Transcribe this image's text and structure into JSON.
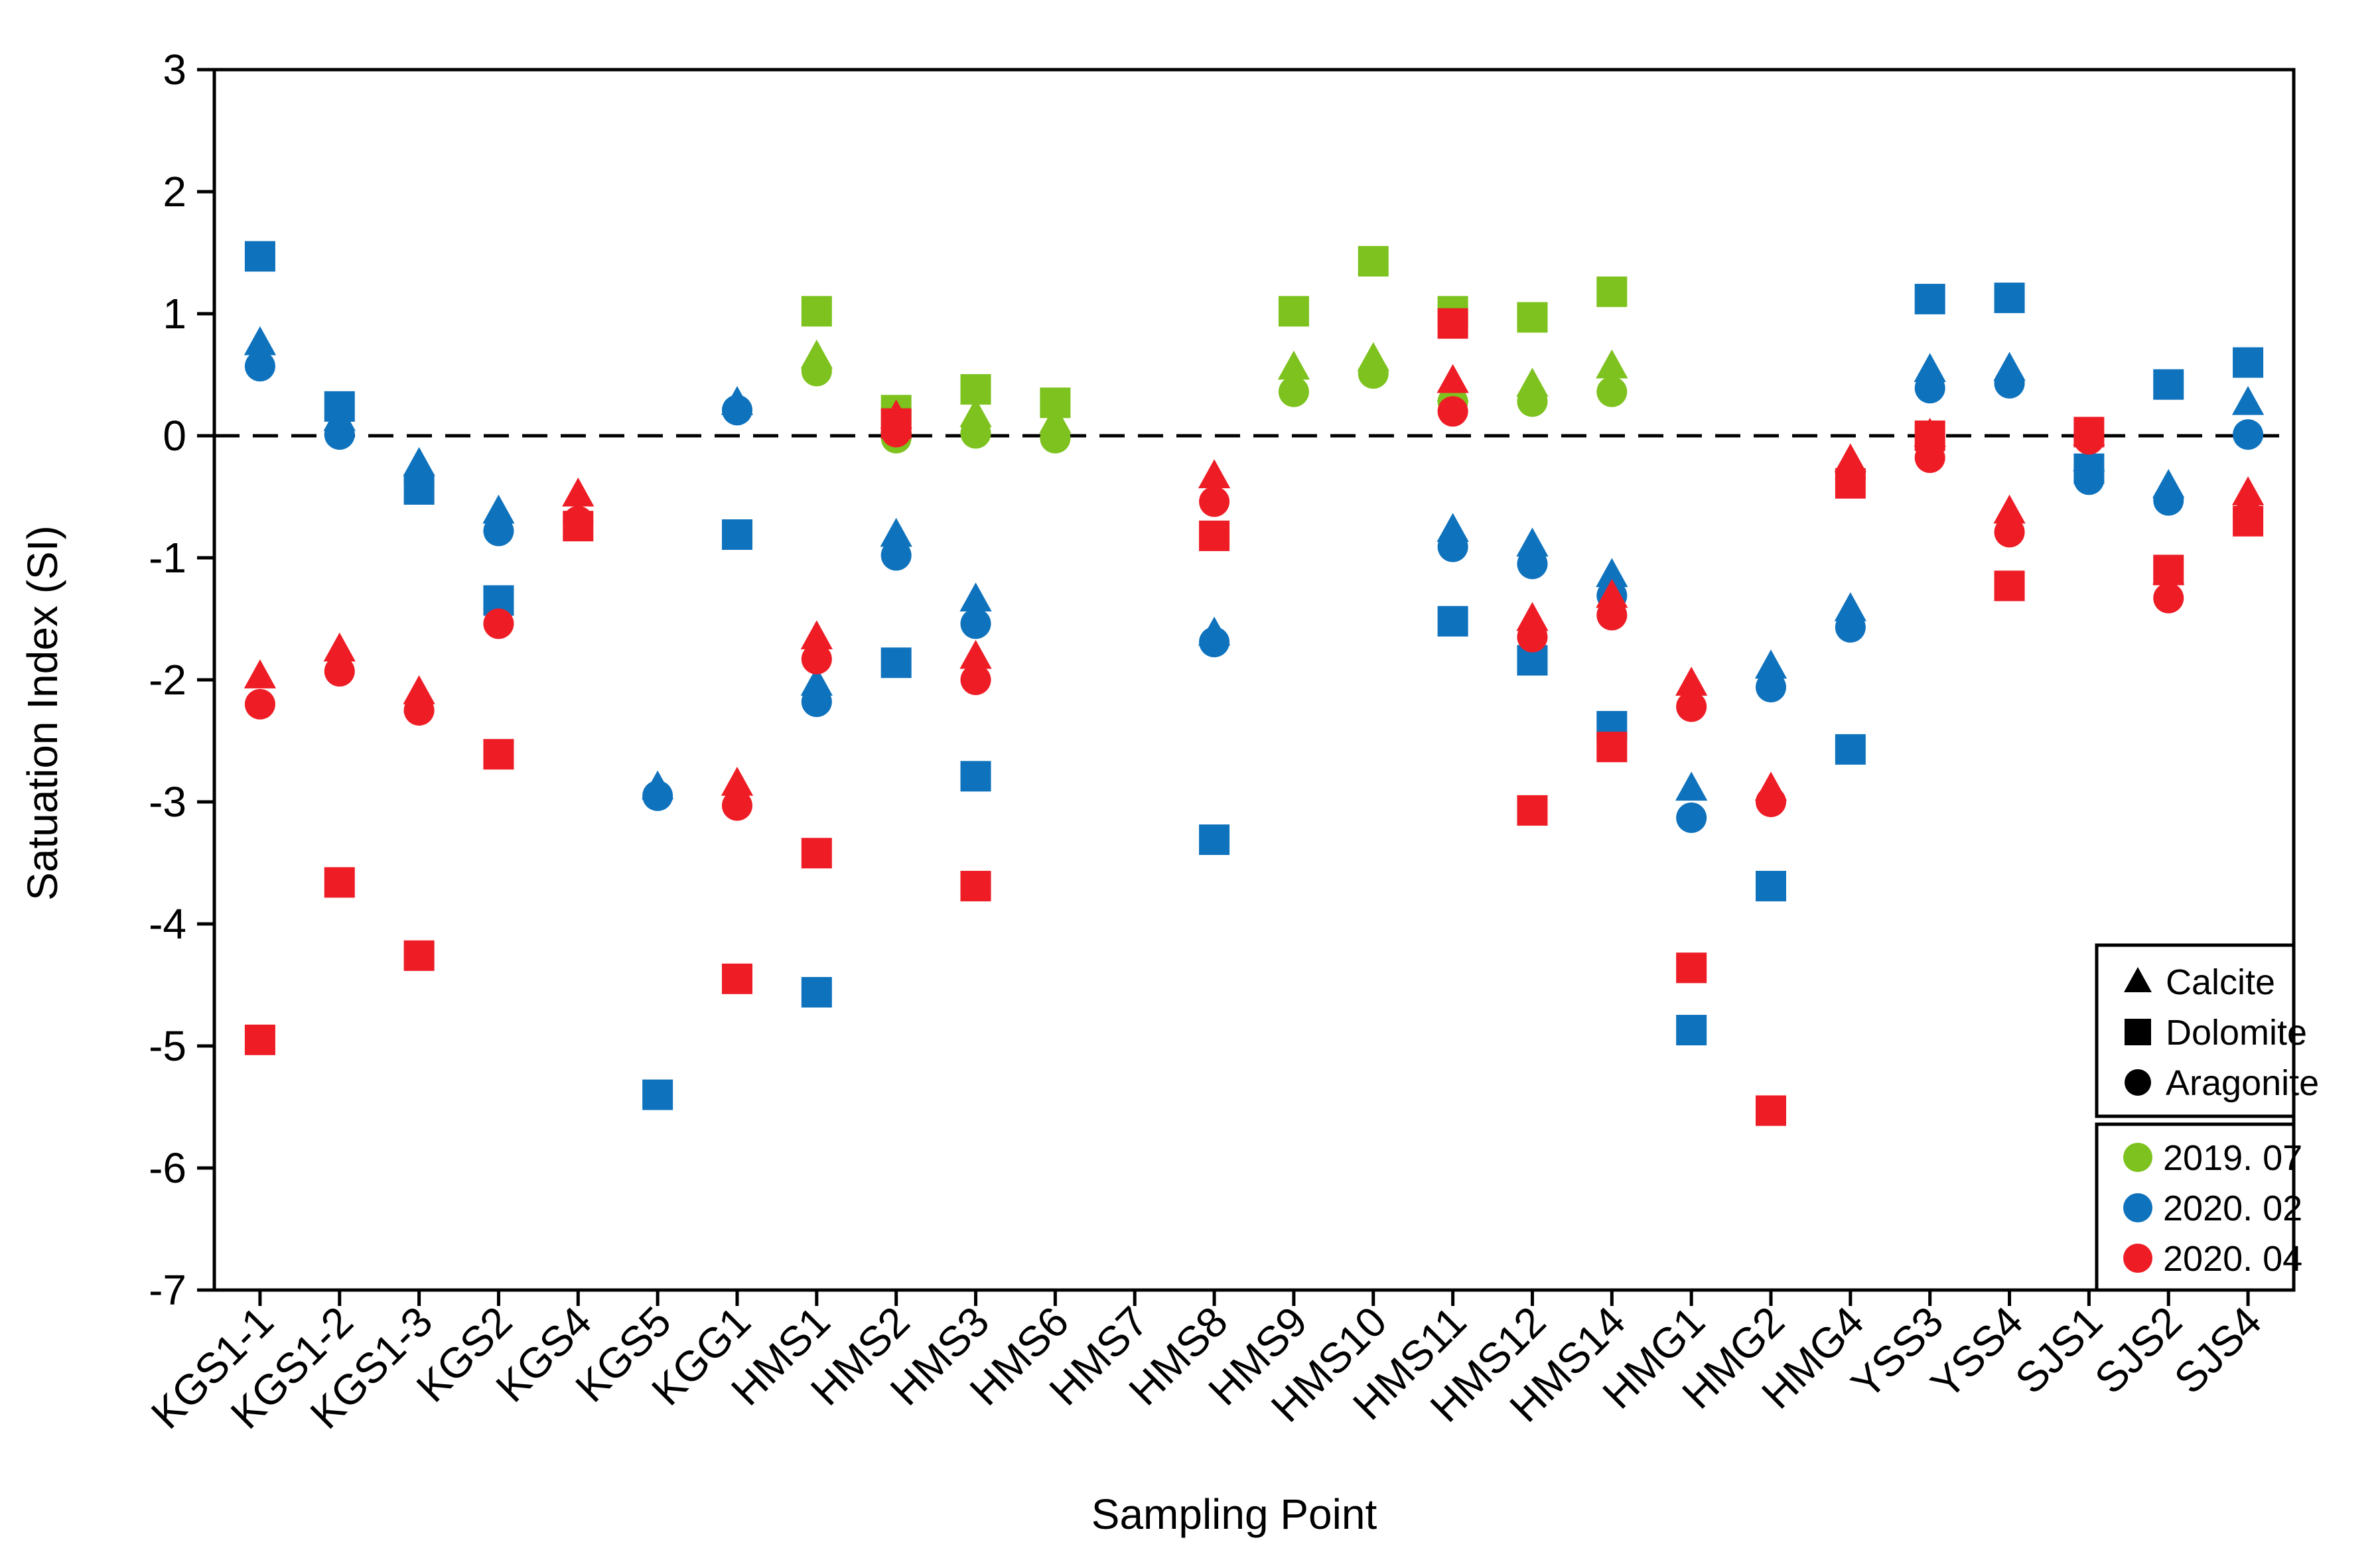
{
  "chart_data": {
    "type": "scatter",
    "title": "",
    "xlabel": "Sampling Point",
    "ylabel": "Satuation Index (SI)",
    "ylim": [
      -7,
      3
    ],
    "yticks": [
      3,
      2,
      1,
      0,
      -1,
      -2,
      -3,
      -4,
      -5,
      -6,
      -7
    ],
    "reference_line": {
      "y": 0,
      "style": "dashed"
    },
    "categories": [
      "KGS1-1",
      "KGS1-2",
      "KGS1-3",
      "KGS2",
      "KGS4",
      "KGS5",
      "KGG1",
      "HMS1",
      "HMS2",
      "HMS3",
      "HMS6",
      "HMS7",
      "HMS8",
      "HMS9",
      "HMS10",
      "HMS11",
      "HMS12",
      "HMS14",
      "HMG1",
      "HMG2",
      "HMG4",
      "YSS3",
      "YSS4",
      "SJS1",
      "SJS2",
      "SJS4"
    ],
    "legend_position": "bottom-right",
    "legend_minerals": [
      {
        "label": "Calcite",
        "marker": "triangle"
      },
      {
        "label": "Dolomite",
        "marker": "square"
      },
      {
        "label": "Aragonite",
        "marker": "circle"
      }
    ],
    "legend_periods": [
      {
        "label": "2019. 07",
        "color": "#7dc21e"
      },
      {
        "label": "2020. 02",
        "color": "#0e72bd"
      },
      {
        "label": "2020. 04",
        "color": "#ee1c25"
      }
    ],
    "series": [
      {
        "name": "Calcite 2019. 07",
        "marker": "triangle",
        "color": "#7dc21e",
        "values": [
          null,
          null,
          null,
          null,
          null,
          null,
          null,
          0.65,
          0.12,
          0.17,
          0.12,
          null,
          null,
          0.56,
          0.63,
          0.38,
          0.42,
          0.57,
          null,
          null,
          null,
          null,
          null,
          null,
          null,
          null
        ]
      },
      {
        "name": "Dolomite 2019. 07",
        "marker": "square",
        "color": "#7dc21e",
        "values": [
          null,
          null,
          null,
          null,
          null,
          null,
          null,
          1.02,
          0.21,
          0.38,
          0.27,
          null,
          null,
          1.02,
          1.43,
          1.02,
          0.97,
          1.18,
          null,
          null,
          null,
          null,
          null,
          null,
          null,
          null
        ]
      },
      {
        "name": "Aragonite 2019. 07",
        "marker": "circle",
        "color": "#7dc21e",
        "values": [
          null,
          null,
          null,
          null,
          null,
          null,
          null,
          0.53,
          -0.02,
          0.02,
          -0.02,
          null,
          null,
          0.36,
          0.51,
          0.28,
          0.28,
          0.36,
          null,
          null,
          null,
          null,
          null,
          null,
          null,
          null
        ]
      },
      {
        "name": "Calcite 2020. 02",
        "marker": "triangle",
        "color": "#0e72bd",
        "values": [
          0.76,
          0.14,
          -0.23,
          -0.62,
          null,
          -2.88,
          0.27,
          -2.03,
          -0.81,
          -1.34,
          null,
          null,
          -1.62,
          null,
          null,
          -0.77,
          -0.89,
          -1.14,
          -2.89,
          -1.89,
          -1.42,
          0.54,
          0.55,
          -0.19,
          -0.41,
          0.27
        ]
      },
      {
        "name": "Dolomite 2020. 02",
        "marker": "square",
        "color": "#0e72bd",
        "values": [
          1.47,
          0.24,
          -0.44,
          -1.35,
          null,
          -5.4,
          -0.81,
          -4.56,
          -1.86,
          -2.79,
          null,
          null,
          -3.31,
          null,
          null,
          -1.52,
          -1.84,
          -2.38,
          -4.87,
          -3.69,
          -2.57,
          1.12,
          1.13,
          -0.27,
          0.42,
          0.6
        ]
      },
      {
        "name": "Aragonite 2020. 02",
        "marker": "circle",
        "color": "#0e72bd",
        "values": [
          0.57,
          0.01,
          -0.37,
          -0.78,
          null,
          -2.95,
          0.21,
          -2.18,
          -0.98,
          -1.54,
          null,
          null,
          -1.69,
          null,
          null,
          -0.91,
          -1.05,
          -1.31,
          -3.13,
          -2.06,
          -1.57,
          0.39,
          0.43,
          -0.36,
          -0.53,
          0.01
        ]
      },
      {
        "name": "Calcite 2020. 04",
        "marker": "triangle",
        "color": "#ee1c25",
        "values": [
          -1.97,
          -1.75,
          -2.1,
          null,
          -0.48,
          null,
          -2.85,
          -1.65,
          0.16,
          -1.81,
          null,
          null,
          -0.33,
          null,
          null,
          0.45,
          -1.5,
          -1.31,
          -2.03,
          -2.89,
          -0.2,
          0.01,
          -0.62,
          0.02,
          -1.12,
          -0.47
        ]
      },
      {
        "name": "Dolomite 2020. 04",
        "marker": "square",
        "color": "#ee1c25",
        "values": [
          -4.95,
          -3.66,
          -4.26,
          -2.61,
          -0.74,
          null,
          -4.45,
          -3.42,
          0.1,
          -3.69,
          null,
          null,
          -0.82,
          null,
          null,
          0.92,
          -3.07,
          -2.55,
          -4.36,
          -5.53,
          -0.39,
          0.0,
          -1.23,
          0.03,
          -1.1,
          -0.7
        ]
      },
      {
        "name": "Aragonite 2020. 04",
        "marker": "circle",
        "color": "#ee1c25",
        "values": [
          -2.2,
          -1.93,
          -2.25,
          -1.54,
          -0.7,
          null,
          -3.03,
          -1.83,
          0.03,
          -2.0,
          null,
          null,
          -0.54,
          null,
          null,
          0.2,
          -1.65,
          -1.47,
          -2.22,
          -3.0,
          -0.35,
          -0.18,
          -0.79,
          -0.03,
          -1.33,
          -0.66
        ]
      }
    ]
  }
}
